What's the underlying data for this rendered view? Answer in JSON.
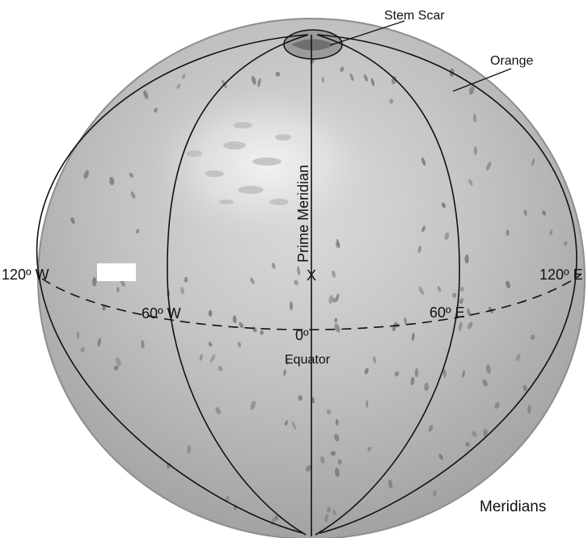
{
  "labels": {
    "stem_scar": "Stem Scar",
    "orange": "Orange",
    "prime_meridian": "Prime Meridian",
    "point_x": "X",
    "lon_120w": "120º W",
    "lon_120e": "120º E",
    "lon_60w": "60º W",
    "lon_60e": "60º E",
    "lat_0": "0º",
    "equator": "Equator",
    "meridians": "Meridians"
  },
  "colors": {
    "orange_body": "#b9b9b9",
    "orange_rim": "#8d8d8d",
    "highlight": "#e4e4e4",
    "pores": "#7a7a7a",
    "lines": "#111111"
  }
}
